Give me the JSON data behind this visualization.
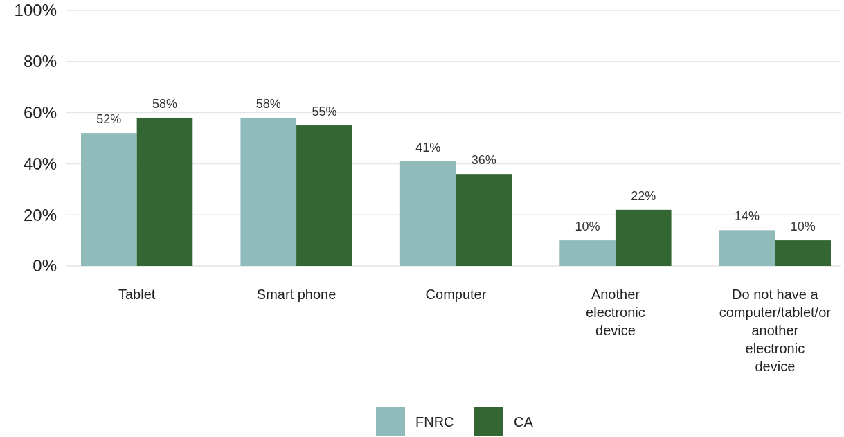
{
  "chart_data": {
    "type": "bar",
    "categories": [
      "Tablet",
      "Smart phone",
      "Computer",
      "Another\nelectronic\ndevice",
      "Do not have a\ncomputer/tablet/or\nanother\nelectronic\ndevice"
    ],
    "series": [
      {
        "name": "FNRC",
        "color": "#8fbcbb",
        "values": [
          52,
          58,
          41,
          10,
          14
        ],
        "value_labels": [
          "52%",
          "58%",
          "41%",
          "10%",
          "14%"
        ]
      },
      {
        "name": "CA",
        "color": "#336633",
        "values": [
          58,
          55,
          36,
          22,
          10
        ],
        "value_labels": [
          "58%",
          "55%",
          "36%",
          "22%",
          "10%"
        ]
      }
    ],
    "ylim": [
      0,
      100
    ],
    "yticks": [
      {
        "value": 0,
        "label": "0%"
      },
      {
        "value": 20,
        "label": "20%"
      },
      {
        "value": 40,
        "label": "40%"
      },
      {
        "value": 60,
        "label": "60%"
      },
      {
        "value": 80,
        "label": "80%"
      },
      {
        "value": 100,
        "label": "100%"
      }
    ],
    "grid": "y",
    "legend": "bottom"
  }
}
